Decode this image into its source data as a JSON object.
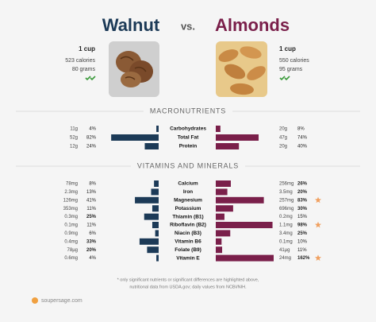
{
  "header": {
    "left": {
      "name": "Walnut",
      "serving": "1 cup",
      "calories": "523 calories",
      "weight": "80 grams",
      "color": "#1c3a57"
    },
    "vs": "vs.",
    "right": {
      "name": "Almonds",
      "serving": "1 cup",
      "calories": "550 calories",
      "weight": "95 grams",
      "color": "#7a1f4a"
    }
  },
  "sections": [
    {
      "title": "MACRONUTRIENTS",
      "rows": [
        {
          "label": "Carbohydrates",
          "left": {
            "amount": "11g",
            "percent": 4,
            "percent_label": "4%"
          },
          "right": {
            "amount": "20g",
            "percent": 8,
            "percent_label": "8%"
          }
        },
        {
          "label": "Total Fat",
          "left": {
            "amount": "52g",
            "percent": 82,
            "percent_label": "82%"
          },
          "right": {
            "amount": "47g",
            "percent": 74,
            "percent_label": "74%"
          }
        },
        {
          "label": "Protein",
          "left": {
            "amount": "12g",
            "percent": 24,
            "percent_label": "24%"
          },
          "right": {
            "amount": "20g",
            "percent": 40,
            "percent_label": "40%"
          }
        }
      ]
    },
    {
      "title": "VITAMINS AND MINERALS",
      "rows": [
        {
          "label": "Calcium",
          "left": {
            "amount": "78mg",
            "percent": 8,
            "percent_label": "8%"
          },
          "right": {
            "amount": "256mg",
            "percent": 26,
            "percent_label": "26%"
          },
          "highlight": "right"
        },
        {
          "label": "Iron",
          "left": {
            "amount": "2.3mg",
            "percent": 13,
            "percent_label": "13%"
          },
          "right": {
            "amount": "3.5mg",
            "percent": 20,
            "percent_label": "20%"
          },
          "highlight": "right"
        },
        {
          "label": "Magnesium",
          "left": {
            "amount": "126mg",
            "percent": 41,
            "percent_label": "41%"
          },
          "right": {
            "amount": "257mg",
            "percent": 83,
            "percent_label": "83%"
          },
          "highlight": "right",
          "star": true
        },
        {
          "label": "Potassium",
          "left": {
            "amount": "353mg",
            "percent": 11,
            "percent_label": "11%"
          },
          "right": {
            "amount": "696mg",
            "percent": 30,
            "percent_label": "30%"
          },
          "highlight": "right"
        },
        {
          "label": "Thiamin (B1)",
          "left": {
            "amount": "0.3mg",
            "percent": 25,
            "percent_label": "25%"
          },
          "right": {
            "amount": "0.2mg",
            "percent": 15,
            "percent_label": "15%"
          },
          "highlight": "left"
        },
        {
          "label": "Riboflavin (B2)",
          "left": {
            "amount": "0.1mg",
            "percent": 11,
            "percent_label": "11%"
          },
          "right": {
            "amount": "1.1mg",
            "percent": 98,
            "percent_label": "98%"
          },
          "highlight": "right",
          "star": true
        },
        {
          "label": "Niacin (B3)",
          "left": {
            "amount": "0.9mg",
            "percent": 6,
            "percent_label": "6%"
          },
          "right": {
            "amount": "3.4mg",
            "percent": 25,
            "percent_label": "25%"
          },
          "highlight": "right"
        },
        {
          "label": "Vitamin B6",
          "left": {
            "amount": "0.4mg",
            "percent": 33,
            "percent_label": "33%"
          },
          "right": {
            "amount": "0.1mg",
            "percent": 10,
            "percent_label": "10%"
          },
          "highlight": "left"
        },
        {
          "label": "Folate (B9)",
          "left": {
            "amount": "78µg",
            "percent": 20,
            "percent_label": "20%"
          },
          "right": {
            "amount": "41µg",
            "percent": 11,
            "percent_label": "11%"
          },
          "highlight": "left"
        },
        {
          "label": "Vitamin E",
          "left": {
            "amount": "0.6mg",
            "percent": 4,
            "percent_label": "4%"
          },
          "right": {
            "amount": "24mg",
            "percent": 162,
            "percent_label": "162%"
          },
          "highlight": "right",
          "star": true
        }
      ]
    }
  ],
  "footnote": [
    "* only significant nutrients or significant differences are highlighted above,",
    "nutritional data from USDA.gov; daily values from NCBI/NIH."
  ],
  "footer": "soupersage.com"
}
